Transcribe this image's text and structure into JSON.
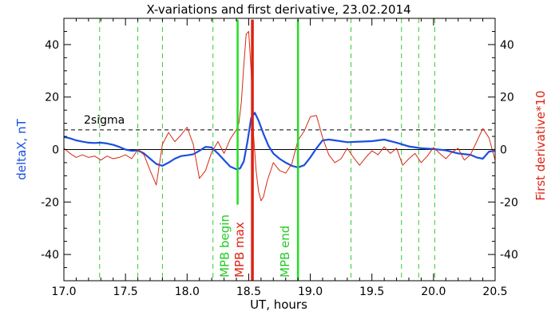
{
  "chart_data": {
    "type": "line",
    "title": "X-variations and first derivative, 23.02.2014",
    "xlabel": "UT, hours",
    "ylabel": "deltaX, nT",
    "ylabel_right": "First derivative*10",
    "xlim": [
      17.0,
      20.5
    ],
    "ylim": [
      -50,
      50
    ],
    "x_ticks": [
      "17.0",
      "17.5",
      "18.0",
      "18.5",
      "19.0",
      "19.5",
      "20.0",
      "20.5"
    ],
    "x_tick_values": [
      17.0,
      17.5,
      18.0,
      18.5,
      19.0,
      19.5,
      20.0,
      20.5
    ],
    "y_ticks": [
      "-40",
      "-20",
      "0",
      "20",
      "40"
    ],
    "y_tick_values": [
      -40,
      -20,
      0,
      20,
      40
    ],
    "colors": {
      "deltaX": "#1a4fe0",
      "derivative": "#d42a14",
      "vline_dashed": "#33cc33",
      "mpb_green": "#22dd22",
      "mpb_red": "#dd2211",
      "left_label": "#1a4fe0",
      "right_label": "#dd2211",
      "annotation_green": "#22cc22",
      "annotation_red": "#dd2211"
    },
    "sigma": {
      "label": "2sigma",
      "value": 7.5
    },
    "dashed_vlines": [
      17.29,
      17.6,
      17.8,
      18.21,
      19.33,
      19.74,
      19.88,
      20.01
    ],
    "markers": [
      {
        "label": "MPB begin",
        "x": 18.41,
        "y_top": 49.5,
        "y_bottom": -21
      },
      {
        "label": "MPB max",
        "x": 18.53,
        "y_top": 49.5,
        "y_bottom": -50
      },
      {
        "label": "MPB end",
        "x": 18.9,
        "y_top": 49.5,
        "y_bottom": -50
      }
    ],
    "series": [
      {
        "color": "blue",
        "x": [
          17.0,
          17.05,
          17.1,
          17.15,
          17.2,
          17.25,
          17.3,
          17.35,
          17.4,
          17.45,
          17.5,
          17.55,
          17.6,
          17.65,
          17.7,
          17.75,
          17.8,
          17.85,
          17.9,
          17.95,
          18.0,
          18.05,
          18.1,
          18.15,
          18.2,
          18.25,
          18.3,
          18.35,
          18.4,
          18.43,
          18.46,
          18.49,
          18.52,
          18.55,
          18.58,
          18.62,
          18.66,
          18.7,
          18.75,
          18.8,
          18.85,
          18.9,
          18.95,
          19.0,
          19.05,
          19.1,
          19.15,
          19.2,
          19.3,
          19.4,
          19.5,
          19.6,
          19.7,
          19.8,
          19.9,
          20.0,
          20.1,
          20.2,
          20.3,
          20.35,
          20.4,
          20.45,
          20.5
        ],
        "y": [
          4.8,
          4.3,
          3.5,
          3.0,
          2.6,
          2.5,
          2.6,
          2.3,
          1.8,
          1.0,
          0.0,
          -0.5,
          -0.3,
          -1.5,
          -3.5,
          -5.5,
          -6.2,
          -5.0,
          -3.5,
          -2.5,
          -2.2,
          -1.8,
          -0.5,
          1.0,
          0.8,
          -1.5,
          -4.0,
          -6.5,
          -7.5,
          -7.2,
          -4.5,
          3.0,
          12.0,
          14.0,
          11.0,
          6.0,
          1.5,
          -1.5,
          -3.5,
          -5.0,
          -6.2,
          -6.8,
          -6.0,
          -3.0,
          0.5,
          3.5,
          3.8,
          3.5,
          2.8,
          3.0,
          3.2,
          3.8,
          2.6,
          1.2,
          0.5,
          0.2,
          -0.3,
          -1.5,
          -2.0,
          -3.0,
          -3.5,
          -0.8,
          -0.5
        ]
      },
      {
        "color": "red",
        "x": [
          17.0,
          17.05,
          17.1,
          17.15,
          17.2,
          17.25,
          17.3,
          17.35,
          17.4,
          17.45,
          17.5,
          17.55,
          17.6,
          17.65,
          17.7,
          17.75,
          17.8,
          17.85,
          17.9,
          17.95,
          18.0,
          18.05,
          18.1,
          18.15,
          18.2,
          18.25,
          18.3,
          18.35,
          18.4,
          18.42,
          18.44,
          18.46,
          18.48,
          18.5,
          18.52,
          18.54,
          18.56,
          18.58,
          18.6,
          18.62,
          18.65,
          18.7,
          18.75,
          18.8,
          18.85,
          18.9,
          18.95,
          19.0,
          19.05,
          19.1,
          19.15,
          19.2,
          19.25,
          19.3,
          19.35,
          19.4,
          19.45,
          19.5,
          19.55,
          19.6,
          19.65,
          19.7,
          19.75,
          19.8,
          19.85,
          19.9,
          19.95,
          20.0,
          20.05,
          20.1,
          20.15,
          20.2,
          20.25,
          20.3,
          20.35,
          20.4,
          20.45,
          20.5
        ],
        "y": [
          0.5,
          -1.5,
          -3.0,
          -2.0,
          -3.0,
          -2.5,
          -4.0,
          -2.5,
          -3.5,
          -3.0,
          -2.0,
          -3.5,
          0.0,
          -2.0,
          -8.0,
          -13.5,
          2.0,
          6.5,
          3.0,
          5.5,
          8.5,
          2.0,
          -11.0,
          -8.0,
          -1.0,
          3.0,
          -1.5,
          4.0,
          7.5,
          10.0,
          18.0,
          32.0,
          44.0,
          45.0,
          30.0,
          5.0,
          -8.0,
          -16.0,
          -19.5,
          -18.0,
          -12.0,
          -5.0,
          -8.0,
          -9.0,
          -5.5,
          3.5,
          7.0,
          12.5,
          13.0,
          4.5,
          -2.0,
          -5.0,
          -3.5,
          0.5,
          -3.0,
          -6.0,
          -3.0,
          -0.5,
          -2.0,
          1.0,
          -1.5,
          0.5,
          -6.0,
          -3.5,
          -1.5,
          -5.0,
          -2.5,
          0.8,
          -1.5,
          -3.5,
          -1.0,
          0.5,
          -4.0,
          -2.0,
          3.0,
          8.0,
          4.5,
          -4.0
        ]
      }
    ]
  }
}
